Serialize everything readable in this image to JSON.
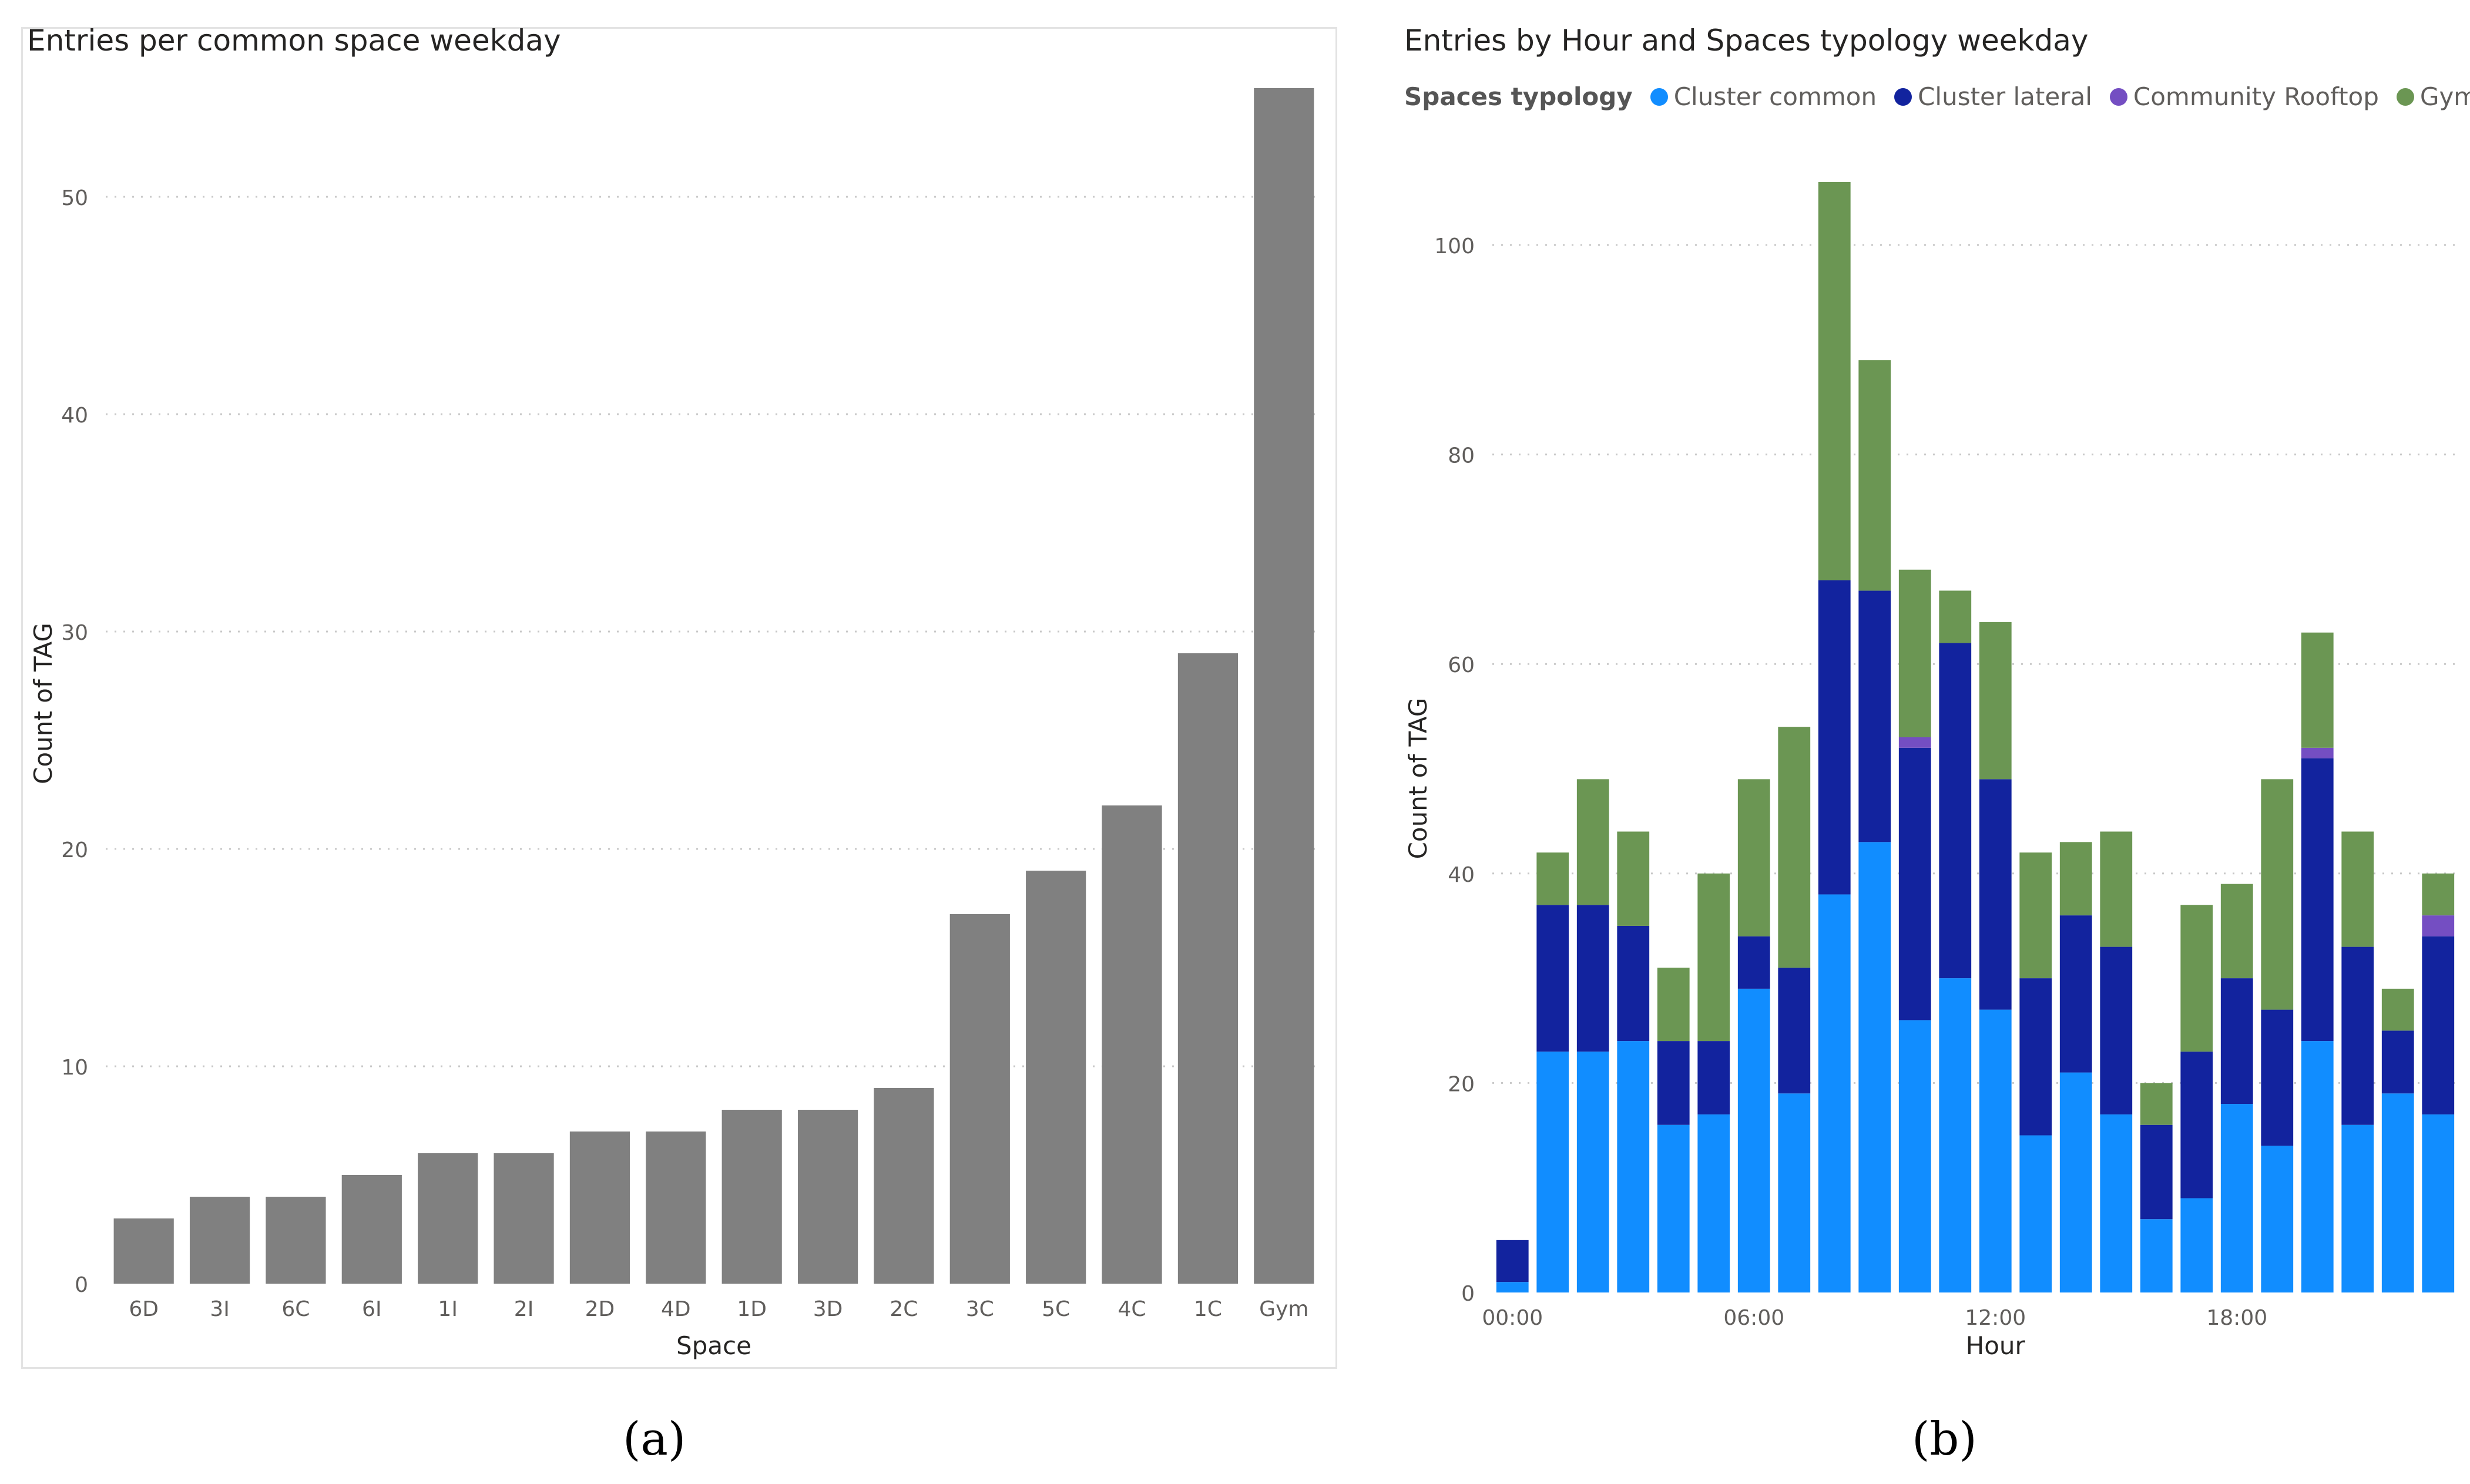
{
  "chart_data": [
    {
      "type": "bar",
      "title": "Entries per common space weekday",
      "xlabel": "Space",
      "ylabel": "Count of TAG",
      "categories": [
        "6D",
        "3I",
        "6C",
        "6I",
        "1I",
        "2I",
        "2D",
        "4D",
        "1D",
        "3D",
        "2C",
        "3C",
        "5C",
        "4C",
        "1C",
        "Gym"
      ],
      "values": [
        3,
        4,
        4,
        5,
        6,
        6,
        7,
        7,
        8,
        8,
        9,
        17,
        19,
        22,
        29,
        55
      ],
      "ylim": [
        0,
        55
      ],
      "yticks": [
        0,
        10,
        20,
        30,
        40,
        50
      ],
      "grid": true,
      "bar_color": "#808080"
    },
    {
      "type": "bar",
      "stacked": true,
      "title": "Entries by Hour and Spaces typology weekday",
      "xlabel": "Hour",
      "ylabel": "Count of TAG",
      "legend_title": "Spaces typology",
      "legend_position": "top-left",
      "hours": [
        0,
        1,
        2,
        3,
        4,
        5,
        6,
        7,
        8,
        9,
        10,
        11,
        12,
        13,
        14,
        15,
        16,
        17,
        18,
        19,
        20,
        21,
        22,
        23
      ],
      "xtick_labels": [
        "00:00",
        "06:00",
        "12:00",
        "18:00"
      ],
      "xtick_hours": [
        0,
        6,
        12,
        18
      ],
      "ylim": [
        0,
        106
      ],
      "yticks": [
        0,
        20,
        40,
        60,
        80,
        100
      ],
      "grid": true,
      "series": [
        {
          "name": "Cluster common",
          "color": "#118DFF",
          "values": [
            1,
            23,
            23,
            24,
            16,
            17,
            29,
            19,
            38,
            43,
            26,
            30,
            27,
            15,
            21,
            17,
            7,
            9,
            18,
            14,
            24,
            16,
            19,
            17
          ]
        },
        {
          "name": "Cluster lateral",
          "color": "#12239E",
          "values": [
            4,
            14,
            14,
            11,
            8,
            7,
            5,
            12,
            30,
            24,
            26,
            32,
            22,
            15,
            15,
            16,
            9,
            14,
            12,
            13,
            27,
            17,
            6,
            17
          ]
        },
        {
          "name": "Community Rooftop",
          "color": "#744EC2",
          "values": [
            0,
            0,
            0,
            0,
            0,
            0,
            0,
            0,
            0,
            0,
            1,
            0,
            0,
            0,
            0,
            0,
            0,
            0,
            0,
            0,
            1,
            0,
            0,
            2
          ]
        },
        {
          "name": "Gym",
          "color": "#6B9653",
          "values": [
            0,
            5,
            12,
            9,
            7,
            16,
            15,
            23,
            38,
            22,
            16,
            5,
            15,
            12,
            7,
            11,
            4,
            14,
            9,
            22,
            11,
            11,
            4,
            4
          ]
        }
      ]
    }
  ],
  "captions": {
    "a": "(a)",
    "b": "(b)"
  }
}
